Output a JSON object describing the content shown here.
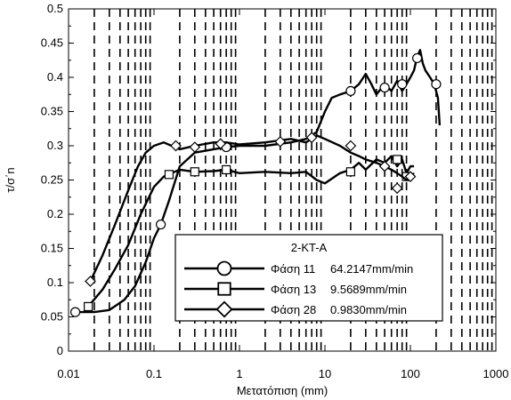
{
  "chart_data": {
    "type": "line",
    "title": "",
    "xlabel": "Μετατόπιση (mm)",
    "ylabel": "τ/σ΄n",
    "xscale": "log",
    "xlim": [
      0.01,
      1000
    ],
    "ylim": [
      0,
      0.5
    ],
    "x_ticks": [
      0.01,
      0.1,
      1,
      10,
      100,
      1000
    ],
    "x_tick_labels": [
      "0.01",
      "0.1",
      "1",
      "10",
      "100",
      "1000"
    ],
    "y_ticks": [
      0,
      0.05,
      0.1,
      0.15,
      0.2,
      0.25,
      0.3,
      0.35,
      0.4,
      0.45,
      0.5
    ],
    "y_tick_labels": [
      "0",
      "0.05",
      "0.1",
      "0.15",
      "0.2",
      "0.25",
      "0.3",
      "0.35",
      "0.4",
      "0.45",
      "0.5"
    ],
    "grid": "dashed vertical at minor log ticks",
    "legend": {
      "title": "2-KT-A",
      "position": "bottom-right",
      "entries": [
        {
          "phase": "Φάση 11",
          "rate": "64.2147mm/min",
          "marker": "circle"
        },
        {
          "phase": "Φάση 13",
          "rate": "9.5689mm/min",
          "marker": "square"
        },
        {
          "phase": "Φάση 28",
          "rate": "0.9830mm/min",
          "marker": "diamond"
        }
      ]
    },
    "series": [
      {
        "name": "Φάση 11 64.2147mm/min",
        "marker": "circle",
        "x": [
          0.012,
          0.02,
          0.03,
          0.045,
          0.06,
          0.08,
          0.1,
          0.12,
          0.15,
          0.2,
          0.3,
          0.5,
          0.7,
          1,
          2,
          4,
          6,
          8,
          10,
          12,
          15,
          20,
          25,
          30,
          35,
          40,
          50,
          60,
          70,
          80,
          90,
          100,
          110,
          120,
          130,
          140,
          150,
          170,
          190,
          210,
          220
        ],
        "y": [
          0.057,
          0.057,
          0.06,
          0.075,
          0.095,
          0.13,
          0.165,
          0.185,
          0.22,
          0.27,
          0.29,
          0.295,
          0.298,
          0.3,
          0.3,
          0.305,
          0.31,
          0.32,
          0.35,
          0.37,
          0.375,
          0.38,
          0.39,
          0.405,
          0.39,
          0.375,
          0.39,
          0.38,
          0.395,
          0.38,
          0.39,
          0.4,
          0.41,
          0.43,
          0.44,
          0.42,
          0.41,
          0.4,
          0.39,
          0.37,
          0.33
        ],
        "marker_x": [
          0.012,
          0.12,
          0.7,
          20,
          50,
          80,
          120,
          200
        ],
        "marker_y": [
          0.057,
          0.185,
          0.298,
          0.38,
          0.385,
          0.39,
          0.428,
          0.39
        ]
      },
      {
        "name": "Φάση 13 9.5689mm/min",
        "marker": "square",
        "x": [
          0.017,
          0.025,
          0.035,
          0.05,
          0.07,
          0.1,
          0.13,
          0.16,
          0.2,
          0.3,
          0.5,
          0.7,
          1,
          2,
          4,
          6,
          8,
          10,
          15,
          20,
          25,
          30,
          40,
          50,
          60,
          70,
          80,
          90,
          100,
          110
        ],
        "y": [
          0.065,
          0.09,
          0.12,
          0.155,
          0.2,
          0.24,
          0.255,
          0.26,
          0.265,
          0.262,
          0.263,
          0.265,
          0.26,
          0.262,
          0.26,
          0.262,
          0.25,
          0.245,
          0.26,
          0.265,
          0.275,
          0.265,
          0.28,
          0.275,
          0.285,
          0.27,
          0.28,
          0.26,
          0.27,
          0.27
        ],
        "marker_x": [
          0.017,
          0.15,
          0.3,
          0.7,
          20,
          70,
          90
        ],
        "marker_y": [
          0.065,
          0.258,
          0.262,
          0.265,
          0.262,
          0.28,
          0.255
        ]
      },
      {
        "name": "Φάση 28 0.9830mm/min",
        "marker": "diamond",
        "x": [
          0.018,
          0.025,
          0.035,
          0.05,
          0.065,
          0.08,
          0.1,
          0.13,
          0.16,
          0.2,
          0.3,
          0.5,
          0.7,
          1,
          2,
          4,
          6,
          8,
          10,
          15,
          20,
          25,
          30,
          40,
          50,
          60,
          70,
          80,
          90,
          100,
          110
        ],
        "y": [
          0.102,
          0.14,
          0.185,
          0.235,
          0.27,
          0.29,
          0.3,
          0.305,
          0.3,
          0.295,
          0.3,
          0.305,
          0.305,
          0.302,
          0.305,
          0.31,
          0.305,
          0.315,
          0.31,
          0.3,
          0.29,
          0.285,
          0.28,
          0.275,
          0.27,
          0.265,
          0.26,
          0.255,
          0.25,
          0.255,
          0.26
        ],
        "marker_x": [
          0.018,
          0.18,
          0.3,
          0.6,
          3,
          7,
          20,
          50,
          70,
          100
        ],
        "marker_y": [
          0.102,
          0.3,
          0.298,
          0.303,
          0.306,
          0.312,
          0.3,
          0.27,
          0.238,
          0.255
        ]
      }
    ]
  }
}
